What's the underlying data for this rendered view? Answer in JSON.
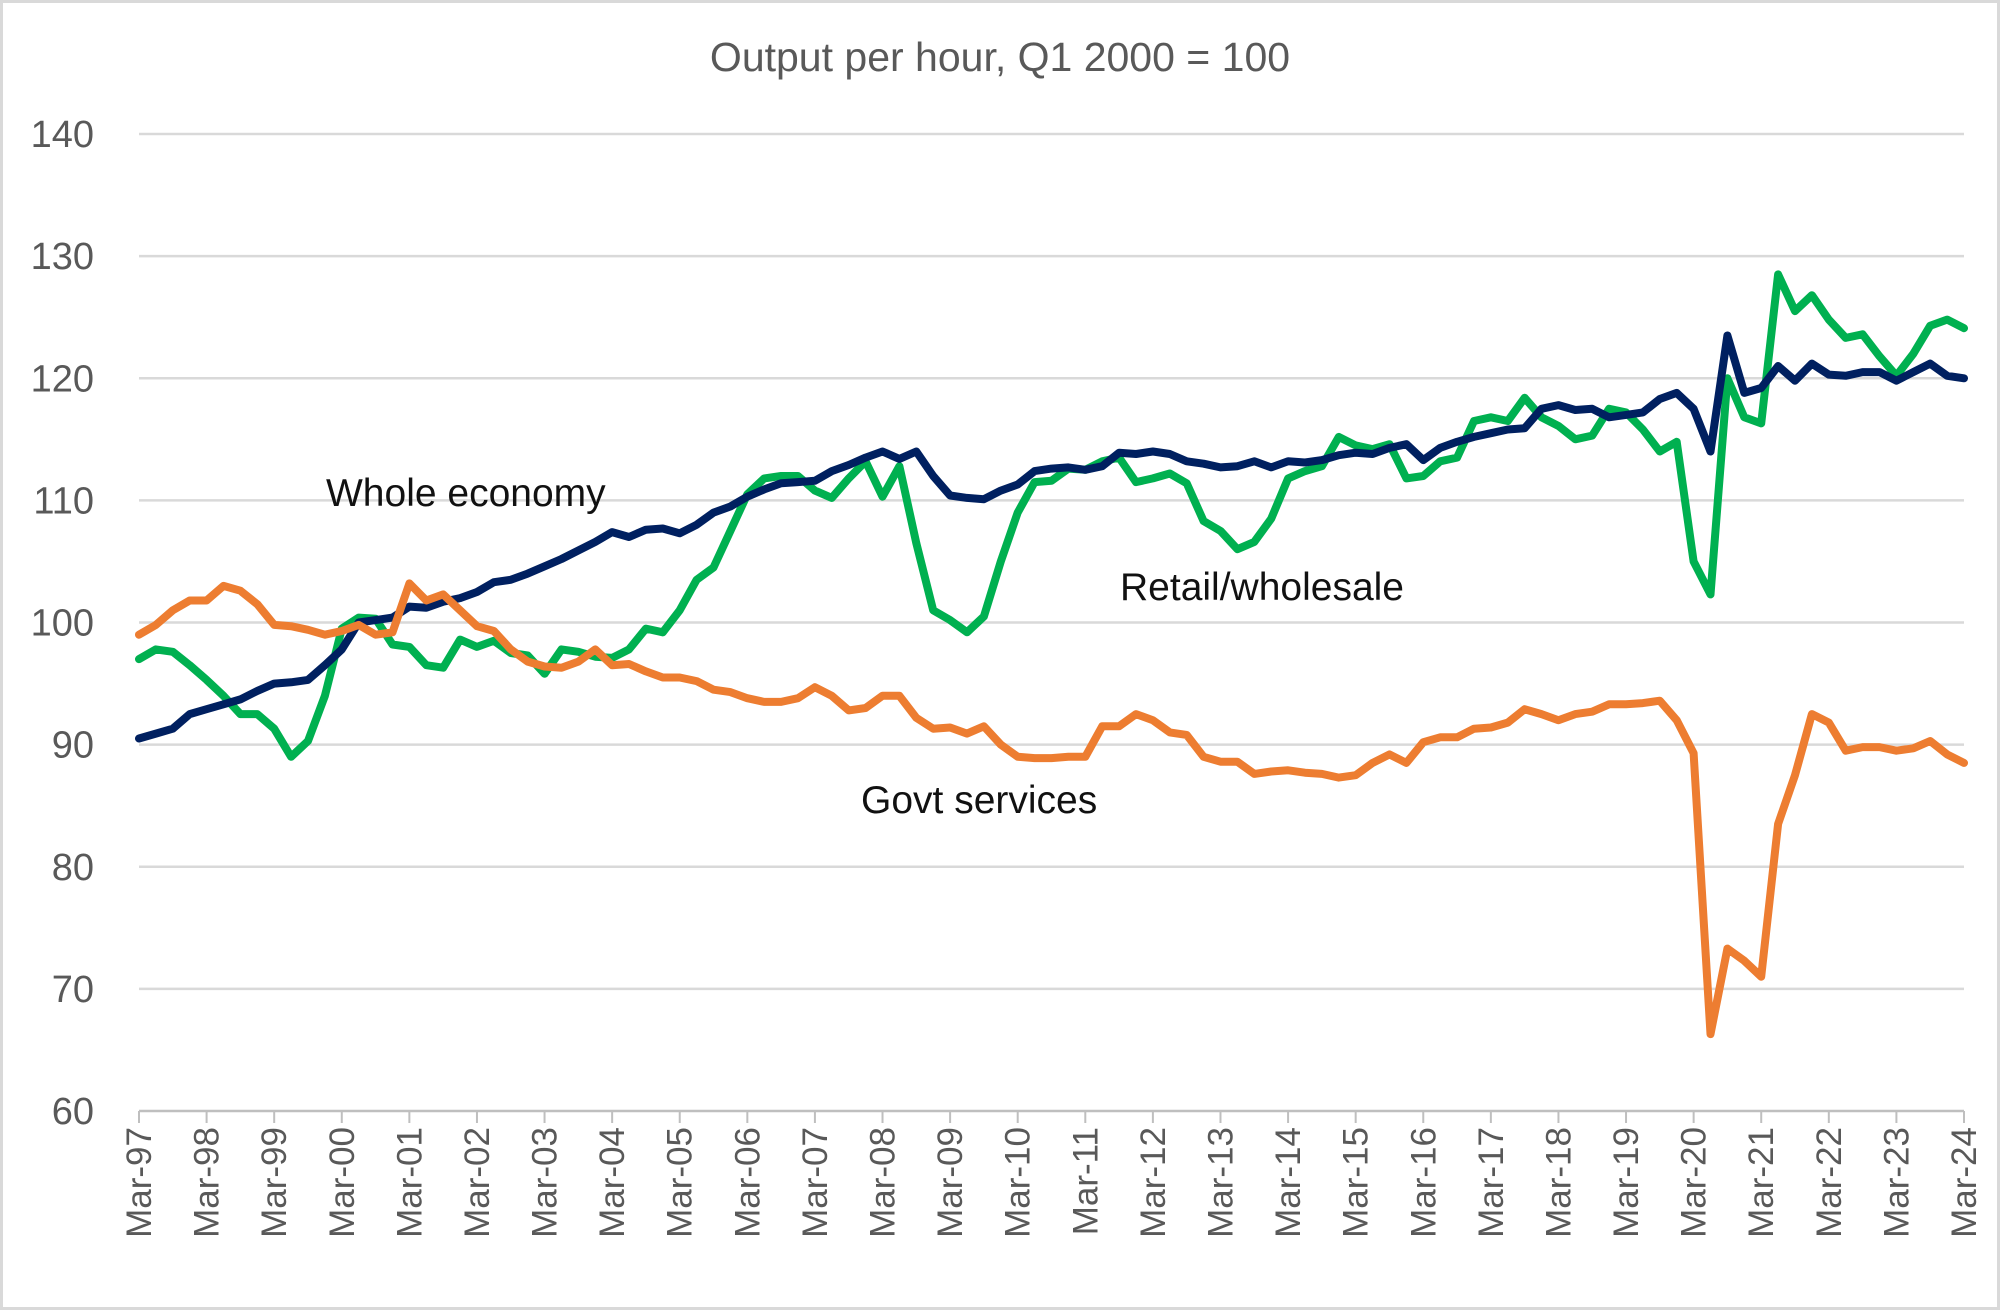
{
  "chart_data": {
    "type": "line",
    "title": "Output per hour, Q1 2000 = 100",
    "xlabel": "",
    "ylabel": "",
    "ylim": [
      60,
      140
    ],
    "yticks": [
      60,
      70,
      80,
      90,
      100,
      110,
      120,
      130,
      140
    ],
    "grid": true,
    "legend": "none (inline labels)",
    "x_start": "Mar-97",
    "x_end": "Mar-24",
    "frequency": "quarterly",
    "xtick_labels": [
      "Mar-97",
      "Mar-98",
      "Mar-99",
      "Mar-00",
      "Mar-01",
      "Mar-02",
      "Mar-03",
      "Mar-04",
      "Mar-05",
      "Mar-06",
      "Mar-07",
      "Mar-08",
      "Mar-09",
      "Mar-10",
      "Mar-11",
      "Mar-12",
      "Mar-13",
      "Mar-14",
      "Mar-15",
      "Mar-16",
      "Mar-17",
      "Mar-18",
      "Mar-19",
      "Mar-20",
      "Mar-21",
      "Mar-22",
      "Mar-23",
      "Mar-24"
    ],
    "series": [
      {
        "name": "Retail/wholesale",
        "color": "#00b050",
        "values": [
          97,
          97.8,
          97.6,
          96.5,
          95.3,
          94.0,
          92.5,
          92.5,
          91.3,
          89.0,
          90.3,
          94.0,
          99.5,
          100.4,
          100.3,
          98.2,
          98.0,
          96.5,
          96.3,
          98.6,
          98.0,
          98.5,
          97.5,
          97.3,
          95.8,
          97.8,
          97.6,
          97.2,
          97.1,
          97.8,
          99.5,
          99.2,
          101.0,
          103.5,
          104.5,
          107.5,
          110.5,
          111.8,
          112.0,
          112.0,
          110.8,
          110.2,
          111.8,
          113.2,
          110.3,
          112.8,
          106.5,
          101.0,
          100.2,
          99.2,
          100.5,
          105.0,
          109.0,
          111.5,
          111.6,
          112.6,
          112.5,
          113.2,
          113.5,
          111.5,
          111.8,
          112.2,
          111.4,
          108.3,
          107.5,
          106.0,
          106.6,
          108.5,
          111.8,
          112.4,
          112.8,
          115.2,
          114.5,
          114.2,
          114.6,
          111.8,
          112.0,
          113.2,
          113.5,
          116.5,
          116.8,
          116.5,
          118.4,
          116.8,
          116.1,
          115.0,
          115.3,
          117.5,
          117.2,
          115.8,
          114.0,
          114.8,
          105.0,
          102.3,
          120.0,
          116.8,
          116.3,
          128.5,
          125.5,
          126.8,
          124.8,
          123.3,
          123.6,
          121.8,
          120.2,
          122.0,
          124.3,
          124.8,
          124.1
        ]
      },
      {
        "name": "Whole economy",
        "color": "#002060",
        "values": [
          90.5,
          90.9,
          91.3,
          92.5,
          92.9,
          93.3,
          93.7,
          94.4,
          95.0,
          95.1,
          95.3,
          96.5,
          97.8,
          100.0,
          100.2,
          100.4,
          101.3,
          101.2,
          101.7,
          102.0,
          102.5,
          103.3,
          103.5,
          104.0,
          104.6,
          105.2,
          105.9,
          106.6,
          107.4,
          107.0,
          107.6,
          107.7,
          107.3,
          108.0,
          109.0,
          109.5,
          110.3,
          110.9,
          111.4,
          111.5,
          111.6,
          112.4,
          112.9,
          113.5,
          114.0,
          113.4,
          114.0,
          112.0,
          110.4,
          110.2,
          110.1,
          110.8,
          111.3,
          112.4,
          112.6,
          112.7,
          112.5,
          112.8,
          113.9,
          113.8,
          114.0,
          113.8,
          113.2,
          113.0,
          112.7,
          112.8,
          113.2,
          112.7,
          113.2,
          113.1,
          113.3,
          113.7,
          113.9,
          113.8,
          114.3,
          114.6,
          113.3,
          114.3,
          114.8,
          115.2,
          115.5,
          115.8,
          115.9,
          117.5,
          117.8,
          117.4,
          117.5,
          116.8,
          117.0,
          117.2,
          118.3,
          118.8,
          117.5,
          114.0,
          123.5,
          118.8,
          119.2,
          121.0,
          119.8,
          121.2,
          120.3,
          120.2,
          120.5,
          120.5,
          119.8,
          120.5,
          121.2,
          120.2,
          120.0
        ]
      },
      {
        "name": "Govt services",
        "color": "#ed7d31",
        "values": [
          99,
          99.8,
          101.0,
          101.8,
          101.8,
          103.0,
          102.6,
          101.5,
          99.8,
          99.7,
          99.4,
          99.0,
          99.3,
          99.8,
          99.0,
          99.2,
          103.2,
          101.8,
          102.3,
          101.0,
          99.7,
          99.3,
          97.8,
          96.8,
          96.4,
          96.3,
          96.8,
          97.8,
          96.5,
          96.6,
          96.0,
          95.5,
          95.5,
          95.2,
          94.5,
          94.3,
          93.8,
          93.5,
          93.5,
          93.8,
          94.7,
          94.0,
          92.8,
          93.0,
          94.0,
          94.0,
          92.2,
          91.3,
          91.4,
          90.9,
          91.5,
          90.0,
          89.0,
          88.9,
          88.9,
          89.0,
          89.0,
          91.5,
          91.5,
          92.5,
          92.0,
          91.0,
          90.8,
          89.0,
          88.6,
          88.6,
          87.6,
          87.8,
          87.9,
          87.7,
          87.6,
          87.3,
          87.5,
          88.5,
          89.2,
          88.5,
          90.2,
          90.6,
          90.6,
          91.3,
          91.4,
          91.8,
          92.9,
          92.5,
          92.0,
          92.5,
          92.7,
          93.3,
          93.3,
          93.4,
          93.6,
          92.0,
          89.3,
          66.3,
          73.3,
          72.3,
          71.0,
          83.5,
          87.5,
          92.5,
          91.8,
          89.5,
          89.8,
          89.8,
          89.5,
          89.7,
          90.3,
          89.2,
          88.5
        ]
      }
    ],
    "annotations": [
      {
        "text": "Whole economy",
        "series": "Whole economy"
      },
      {
        "text": "Retail/wholesale",
        "series": "Retail/wholesale"
      },
      {
        "text": "Govt services",
        "series": "Govt services"
      }
    ]
  }
}
